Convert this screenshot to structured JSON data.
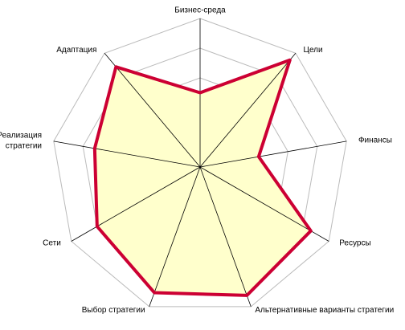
{
  "chart_data": {
    "type": "radar",
    "categories": [
      "Бизнес-среда",
      "Цели",
      "Финансы",
      "Ресурсы",
      "Альтернативные варианты стратегии",
      "Выбор стратегии",
      "Сети",
      "Реализация\nстратегии",
      "Адаптация"
    ],
    "values": [
      2.5,
      4.7,
      2.0,
      4.3,
      4.6,
      4.5,
      4.0,
      3.6,
      4.4
    ],
    "color": "#cc0033",
    "fill": "#ffffcc",
    "ylim": [
      0,
      5
    ],
    "yticks": [
      1,
      2,
      3,
      4,
      5
    ],
    "grid": true
  }
}
